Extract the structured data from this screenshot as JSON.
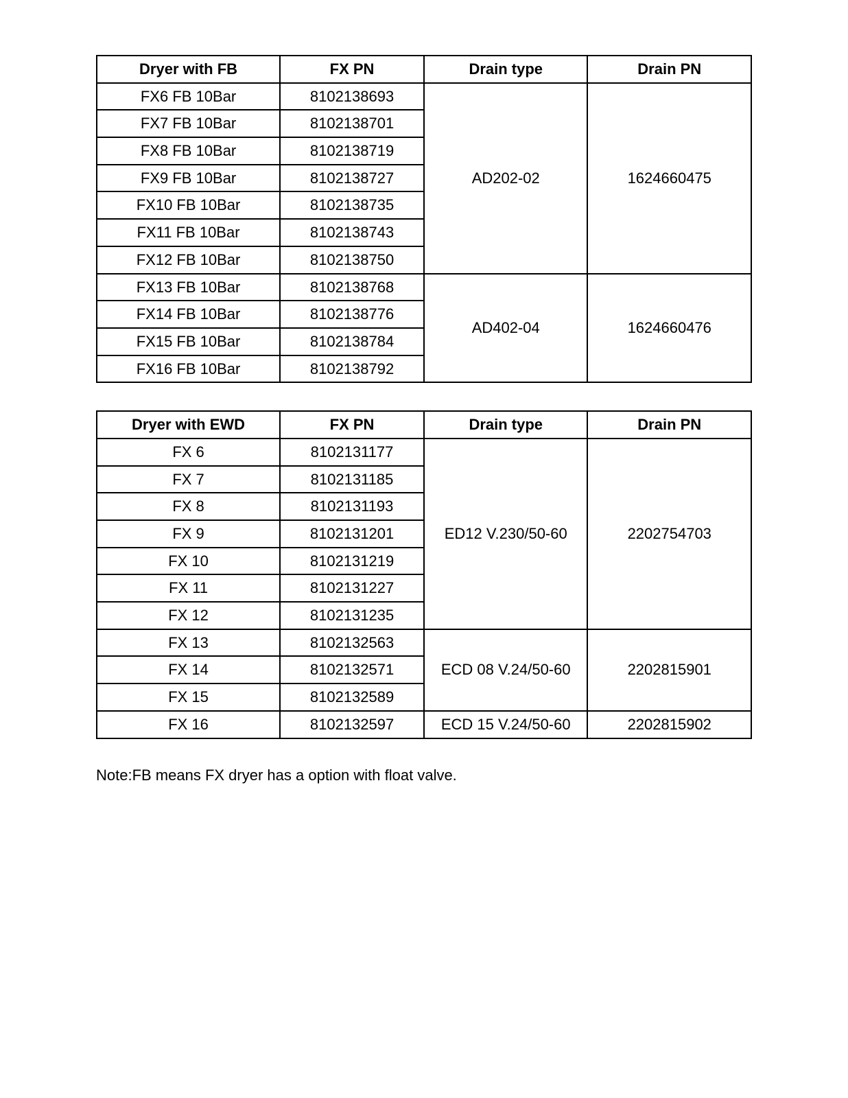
{
  "table1": {
    "headers": [
      "Dryer with FB",
      "FX PN",
      "Drain type",
      "Drain PN"
    ],
    "group1": {
      "rows": [
        [
          "FX6 FB 10Bar",
          "8102138693"
        ],
        [
          "FX7 FB 10Bar",
          "8102138701"
        ],
        [
          "FX8 FB 10Bar",
          "8102138719"
        ],
        [
          "FX9 FB 10Bar",
          "8102138727"
        ],
        [
          "FX10 FB 10Bar",
          "8102138735"
        ],
        [
          "FX11 FB 10Bar",
          "8102138743"
        ],
        [
          "FX12 FB 10Bar",
          "8102138750"
        ]
      ],
      "drain_type": "AD202-02",
      "drain_pn": "1624660475"
    },
    "group2": {
      "rows": [
        [
          "FX13 FB 10Bar",
          "8102138768"
        ],
        [
          "FX14 FB 10Bar",
          "8102138776"
        ],
        [
          "FX15 FB 10Bar",
          "8102138784"
        ],
        [
          "FX16 FB 10Bar",
          "8102138792"
        ]
      ],
      "drain_type": "AD402-04",
      "drain_pn": "1624660476"
    }
  },
  "table2": {
    "headers": [
      "Dryer with EWD",
      "FX PN",
      "Drain type",
      "Drain PN"
    ],
    "group1": {
      "rows": [
        [
          "FX 6",
          "8102131177"
        ],
        [
          "FX 7",
          "8102131185"
        ],
        [
          "FX 8",
          "8102131193"
        ],
        [
          "FX 9",
          "8102131201"
        ],
        [
          "FX 10",
          "8102131219"
        ],
        [
          "FX 11",
          "8102131227"
        ],
        [
          "FX 12",
          "8102131235"
        ]
      ],
      "drain_type": "ED12 V.230/50-60",
      "drain_pn": "2202754703"
    },
    "group2": {
      "rows": [
        [
          "FX 13",
          "8102132563"
        ],
        [
          "FX 14",
          "8102132571"
        ],
        [
          "FX 15",
          "8102132589"
        ]
      ],
      "drain_type": "ECD 08 V.24/50-60",
      "drain_pn": "2202815901"
    },
    "group3": {
      "rows": [
        [
          "FX 16",
          "8102132597"
        ]
      ],
      "drain_type": "ECD 15 V.24/50-60",
      "drain_pn": "2202815902"
    }
  },
  "note": "Note:FB means FX dryer has a option with float valve."
}
